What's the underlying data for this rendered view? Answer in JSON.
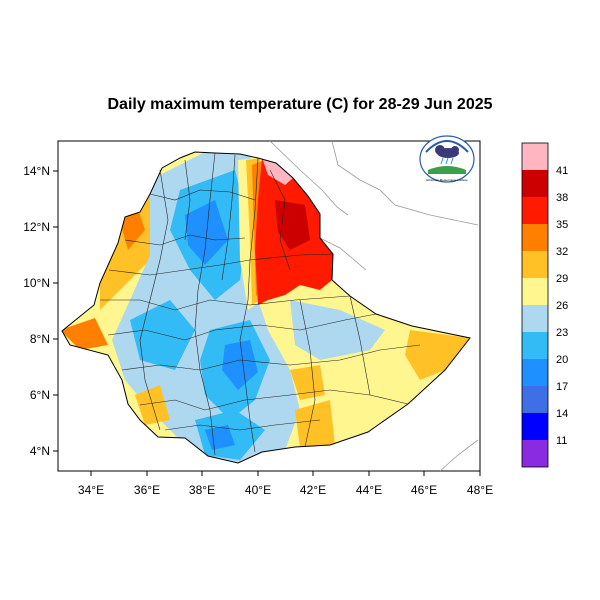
{
  "title": "Daily maximum temperature (C) for 28-29 Jun 2025",
  "map": {
    "lon_ticks": [
      "34°E",
      "36°E",
      "38°E",
      "40°E",
      "42°E",
      "44°E",
      "46°E",
      "48°E"
    ],
    "lat_ticks": [
      "4°N",
      "6°N",
      "8°N",
      "10°N",
      "12°N",
      "14°N"
    ],
    "colors": {
      "background": "#ffffff",
      "country_border": "#000000",
      "neighbour_border": "#999999"
    }
  },
  "colorbar": {
    "labels": [
      "11",
      "14",
      "17",
      "20",
      "23",
      "26",
      "29",
      "32",
      "35",
      "38",
      "41"
    ],
    "colors": [
      "#8a2be2",
      "#0000ff",
      "#3f6fe6",
      "#1e90ff",
      "#33bbf5",
      "#add8f0",
      "#fff68f",
      "#ffc125",
      "#ff8000",
      "#ff1a00",
      "#cc0000",
      "#ffb6c1"
    ]
  },
  "logo": {
    "text": "Ethiopian Meteorology Institute"
  }
}
